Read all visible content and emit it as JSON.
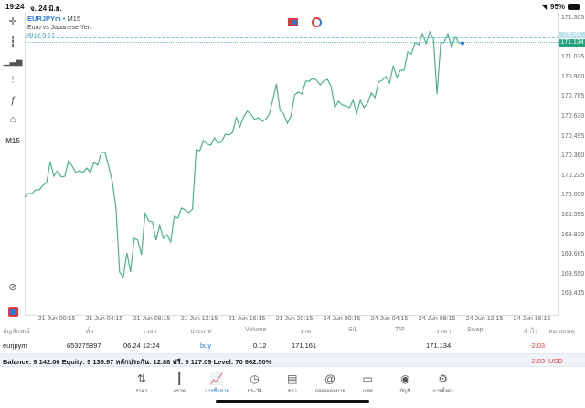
{
  "status_bar": {
    "time": "19:24",
    "date": "จ. 24 มิ.ย.",
    "battery": "95%"
  },
  "chart": {
    "symbol": "EURJPYm",
    "separator": "•",
    "timeframe": "M15",
    "description": "Euro vs Japanese Yen",
    "order_label": "BUY 0.12",
    "bid_tag": "171.161",
    "price_tag": "171.134",
    "timeframe_button": "M15",
    "line_color": "#4db38a",
    "price_tag_color": "#26a17b"
  },
  "chart_data": {
    "type": "line",
    "title": "EURJPYm M15",
    "y_ticks": [
      "171.305",
      "171.170",
      "171.035",
      "170.900",
      "170.765",
      "170.630",
      "170.495",
      "170.360",
      "170.225",
      "170.090",
      "169.955",
      "169.820",
      "169.685",
      "169.550",
      "169.415"
    ],
    "ylim": [
      169.415,
      171.305
    ],
    "x_ticks": [
      "21 Jun 00:15",
      "21 Jun 04:15",
      "21 Jun 08:15",
      "21 Jun 12:15",
      "21 Jun 16:15",
      "21 Jun 20:15",
      "24 Jun 00:15",
      "24 Jun 04:15",
      "24 Jun 08:15",
      "24 Jun 12:15",
      "24 Jun 16:15"
    ],
    "series": [
      {
        "name": "EURJPYm close",
        "values": [
          170.08,
          170.105,
          170.105,
          170.13,
          170.13,
          170.161,
          170.18,
          170.324,
          170.224,
          170.261,
          170.218,
          170.224,
          170.33,
          170.293,
          170.249,
          170.261,
          170.249,
          170.28,
          170.249,
          170.318,
          170.299,
          170.386,
          170.386,
          170.293,
          170.186,
          170.011,
          169.568,
          169.53,
          169.699,
          169.568,
          169.799,
          169.786,
          169.686,
          169.968,
          169.918,
          169.911,
          169.786,
          169.886,
          169.799,
          169.824,
          169.774,
          169.949,
          169.936,
          170.005,
          169.993,
          169.974,
          169.999,
          170.405,
          170.399,
          170.468,
          170.443,
          170.436,
          170.486,
          170.449,
          170.461,
          170.511,
          170.505,
          170.524,
          170.624,
          170.561,
          170.63,
          170.668,
          170.649,
          170.611,
          170.624,
          170.599,
          170.611,
          170.643,
          170.743,
          170.855,
          170.674,
          170.649,
          170.586,
          170.636,
          170.78,
          170.799,
          170.786,
          170.874,
          170.874,
          170.893,
          170.88,
          170.849,
          170.874,
          170.886,
          170.836,
          170.693,
          170.736,
          170.711,
          170.705,
          170.693,
          170.743,
          170.655,
          170.743,
          170.693,
          170.724,
          170.793,
          170.761,
          170.868,
          170.88,
          170.905,
          170.861,
          170.98,
          170.899,
          170.949,
          170.949,
          171.074,
          171.061,
          171.136,
          171.124,
          171.199,
          171.13,
          171.211,
          171.168,
          170.786,
          171.13,
          171.143,
          171.199,
          171.105,
          171.18,
          171.136,
          171.134
        ]
      }
    ]
  },
  "table": {
    "headers": [
      "สัญลักษณ์",
      "ตั๋ว",
      "เวลา",
      "ประเภท",
      "Volume",
      "ราคา",
      "S/L",
      "T/P",
      "ราคา",
      "Swap",
      "กำไร",
      "หมายเหตุ"
    ],
    "row": {
      "symbol": "eurjpym",
      "ticket": "653275897",
      "time": "06.24 12:24",
      "type": "buy",
      "volume": "0.12",
      "open_price": "171.161",
      "current_price": "171.134",
      "profit": "-2.03"
    }
  },
  "balance": {
    "text": "Balance: 9 142.00 Equity: 9 139.97 หลักประกัน: 12.88 ฟรี: 9 127.09 Level: 70 962.50%",
    "profit": "-2.03",
    "currency": "USD"
  },
  "nav": [
    {
      "label": "ราคา",
      "icon": "⇅"
    },
    {
      "label": "กราฟ",
      "icon": "┃"
    },
    {
      "label": "การซื้อขาย",
      "icon": "📈"
    },
    {
      "label": "ประวัติ",
      "icon": "◷"
    },
    {
      "label": "ข่าว",
      "icon": "▤"
    },
    {
      "label": "กล่องจดหมาย",
      "icon": "@"
    },
    {
      "label": "แชท",
      "icon": "▭"
    },
    {
      "label": "บัญชี",
      "icon": "◉"
    },
    {
      "label": "การตั้งค่า",
      "icon": "⚙"
    }
  ]
}
